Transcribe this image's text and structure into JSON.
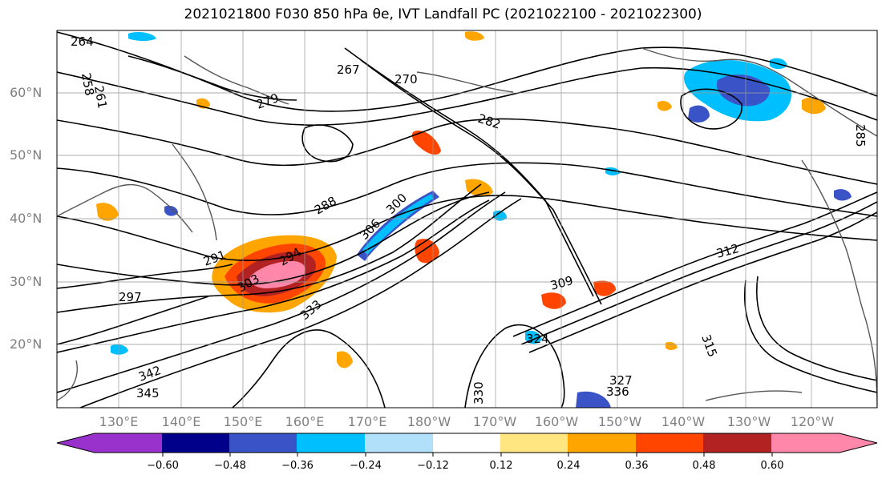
{
  "title": "2021021800 F030 850 hPa θe, IVT Landfall PC (2021022100 - 2021022300)",
  "map": {
    "lat_labels": [
      "60°N",
      "50°N",
      "40°N",
      "30°N",
      "20°N"
    ],
    "lon_labels": [
      "130°E",
      "140°E",
      "150°E",
      "160°E",
      "170°E",
      "180°W",
      "170°W",
      "160°W",
      "150°W",
      "140°W",
      "130°W",
      "120°W"
    ],
    "contour_labels": [
      "264",
      "261",
      "258",
      "267",
      "270",
      "279",
      "282",
      "285",
      "288",
      "291",
      "294",
      "297",
      "300",
      "303",
      "306",
      "309",
      "312",
      "315",
      "324",
      "327",
      "330",
      "333",
      "336",
      "342",
      "345"
    ]
  },
  "colorbar": {
    "ticks": [
      "−0.60",
      "−0.48",
      "−0.36",
      "−0.24",
      "−0.12",
      "0.12",
      "0.24",
      "0.36",
      "0.48",
      "0.60"
    ],
    "colors": [
      "#9932cc",
      "#00008b",
      "#3a54c8",
      "#00bfff",
      "#b0e0fa",
      "#ffffff",
      "#ffe680",
      "#ffa500",
      "#ff4500",
      "#b22222",
      "#ff88aa"
    ]
  }
}
